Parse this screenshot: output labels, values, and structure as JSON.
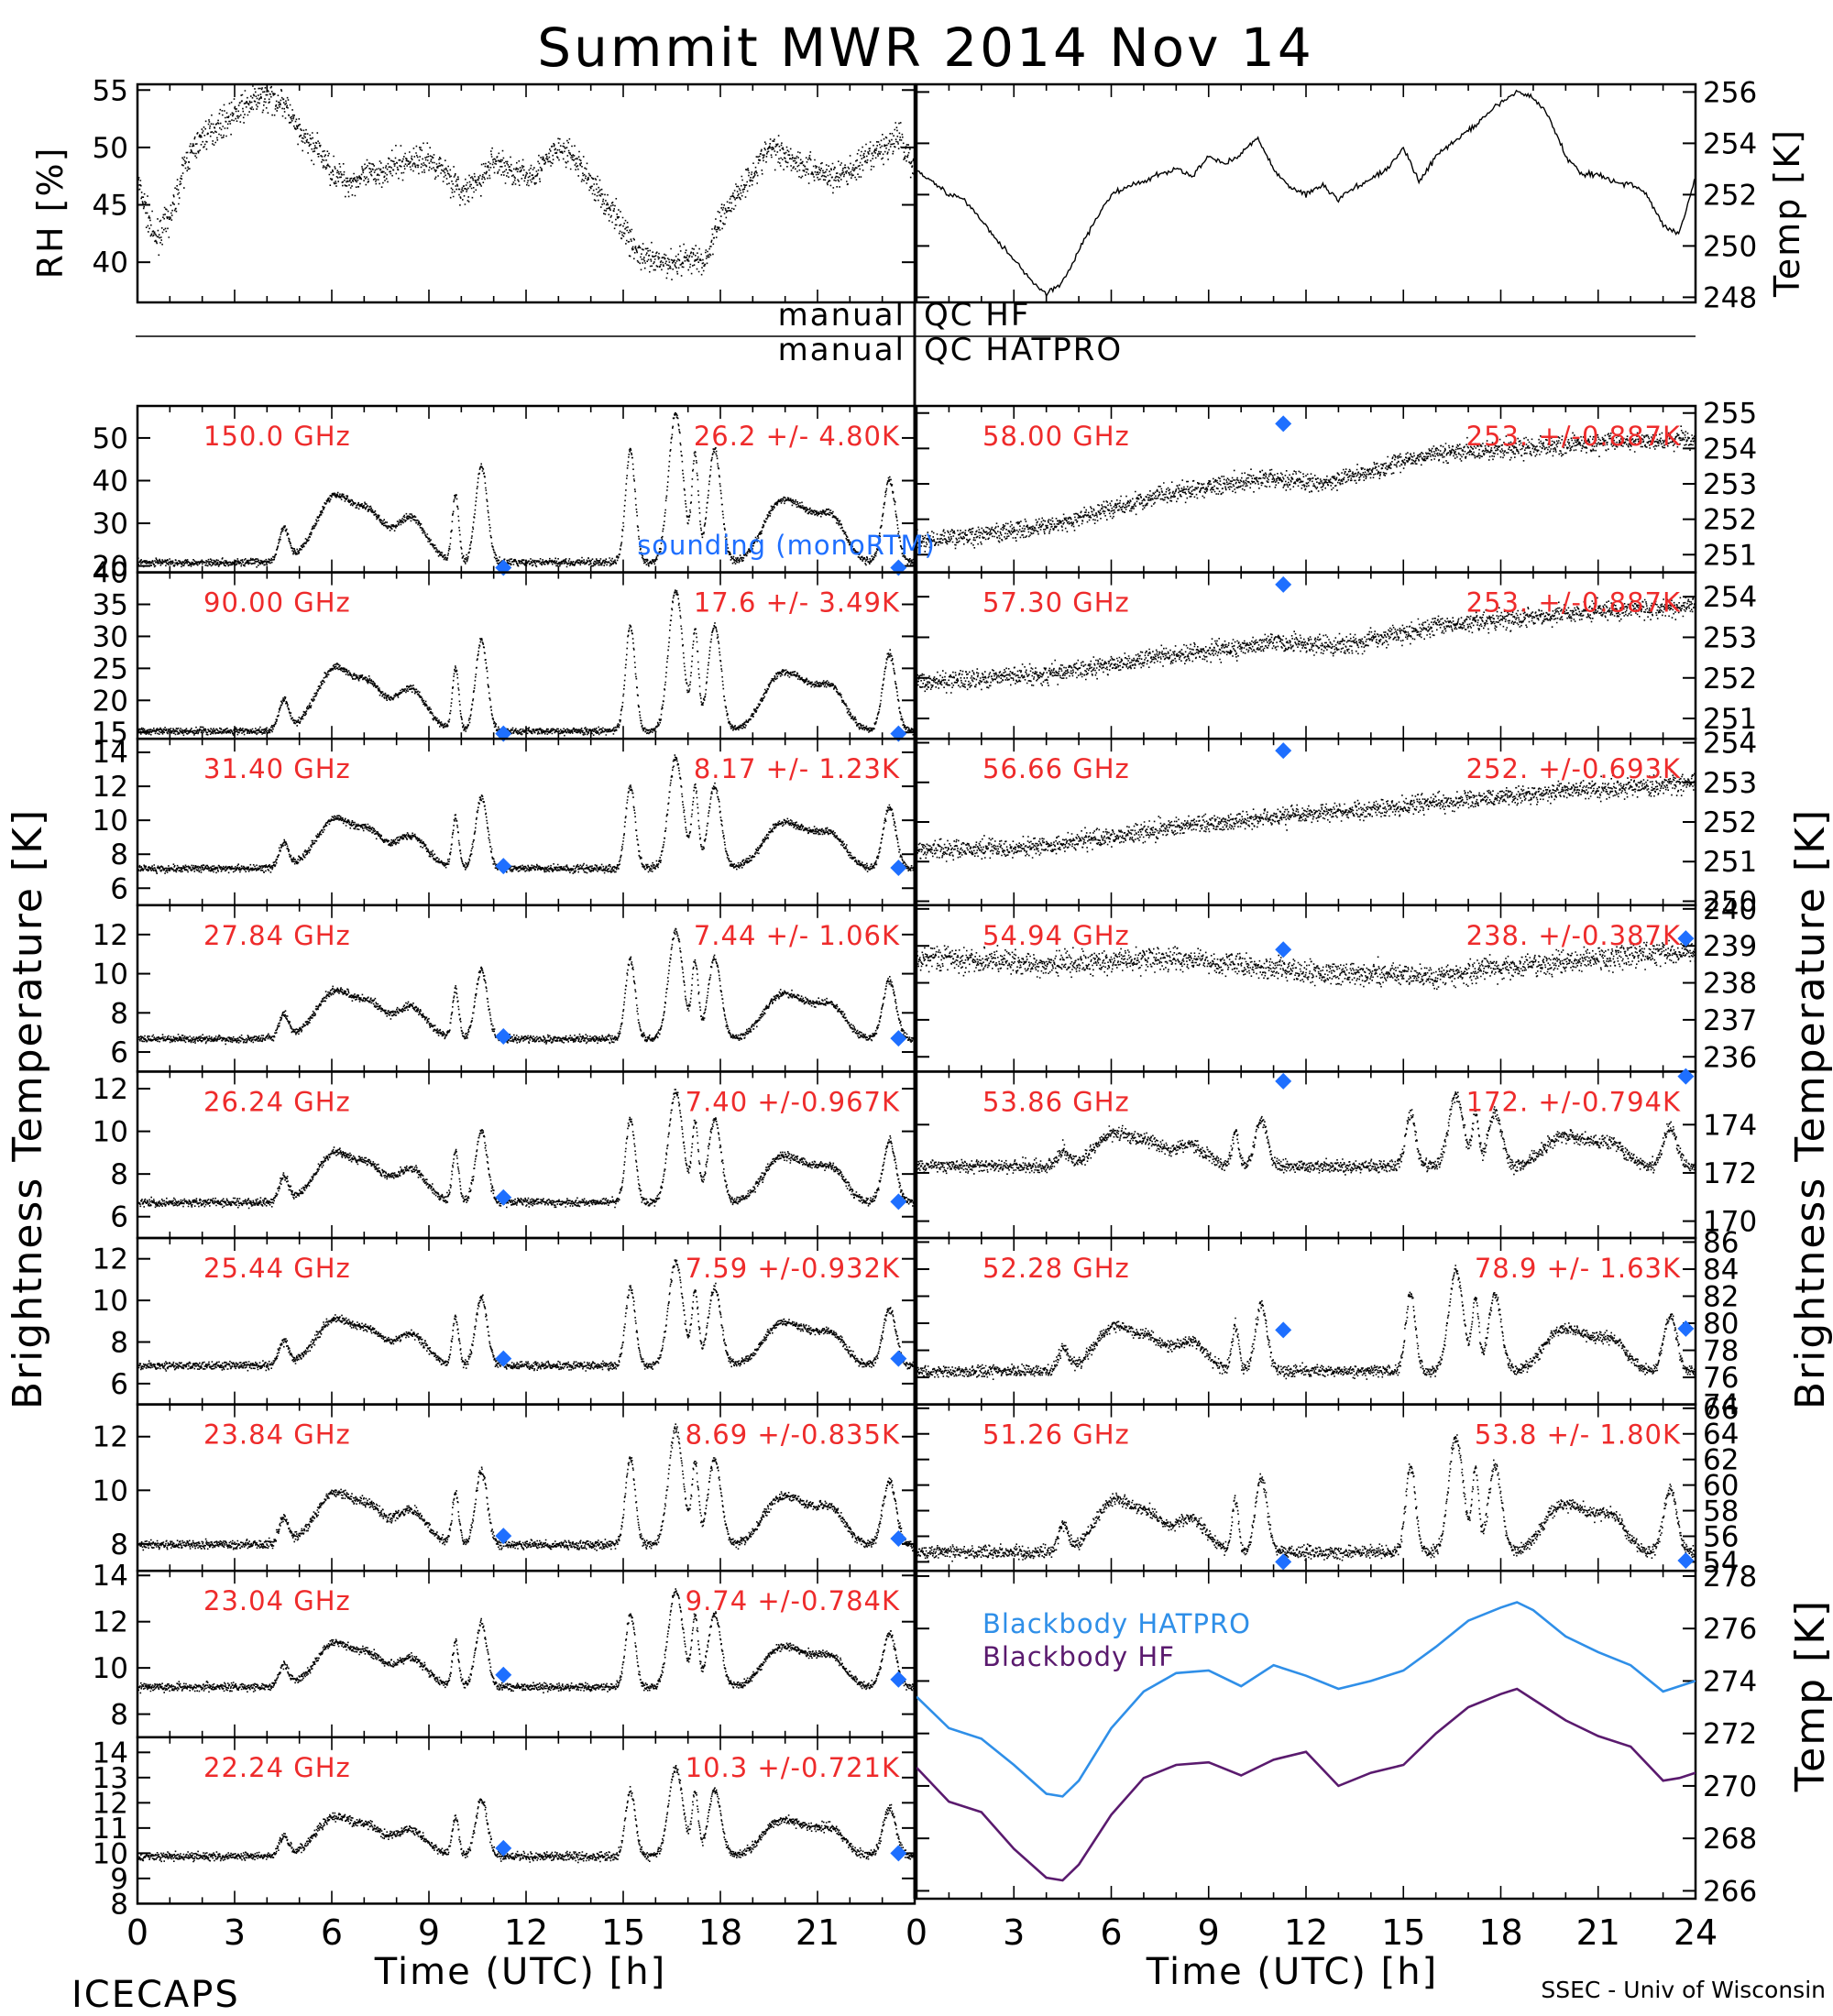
{
  "title": "Summit MWR 2014 Nov 14",
  "qc_labels": {
    "hf_left": "manual",
    "hf_right": "QC HF",
    "hatpro_left": "manual",
    "hatpro_right": "QC HATPRO"
  },
  "footer": {
    "left": "ICECAPS",
    "right": "SSEC - Univ of Wisconsin"
  },
  "axis_labels": {
    "rh": "RH [%]",
    "temp_top": "Temp [K]",
    "tb_left": "Brightness Temperature [K]",
    "tb_right": "Brightness Temperature [K]",
    "temp_bottom": "Temp [K]",
    "x_left": "Time (UTC) [h]",
    "x_right": "Time (UTC) [h]"
  },
  "x_ticks_left": [
    "0",
    "3",
    "6",
    "9",
    "12",
    "15",
    "18",
    "21"
  ],
  "x_ticks_right": [
    "0",
    "3",
    "6",
    "9",
    "12",
    "15",
    "18",
    "21",
    "24"
  ],
  "legend": [
    {
      "label": "sounding (monoRTM)",
      "color": "#1e6fff"
    },
    {
      "label": "Blackbody HATPRO",
      "color": "#2f8fe8"
    },
    {
      "label": "Blackbody HF",
      "color": "#5a1a6e"
    }
  ],
  "colors": {
    "label": "#ee2b2b",
    "diamond": "#1e6fff",
    "hatpro": "#2f8fe8",
    "hf": "#5a1a6e",
    "trace": "#000000"
  },
  "chart_data": [
    {
      "id": "rh",
      "type": "scatter",
      "ylabel": "RH [%]",
      "xlim": [
        0,
        24
      ],
      "ylim": [
        36.5,
        55.5
      ],
      "yticks": [
        40,
        45,
        50,
        55
      ],
      "ytick_labels": [
        "40",
        "45",
        "50",
        "55"
      ],
      "x": [
        0,
        0.5,
        1,
        1.5,
        2,
        2.5,
        3,
        3.5,
        4,
        4.5,
        5,
        5.5,
        6,
        6.5,
        7,
        7.5,
        8,
        8.5,
        9,
        9.5,
        10,
        10.5,
        11,
        11.5,
        12,
        12.5,
        13,
        13.5,
        14,
        14.5,
        15,
        15.5,
        16,
        16.5,
        17,
        17.5,
        18,
        18.5,
        19,
        19.5,
        20,
        20.5,
        21,
        21.5,
        22,
        22.5,
        23,
        23.5,
        24
      ],
      "y": [
        47,
        42,
        44,
        49,
        51,
        52,
        53,
        54,
        54.5,
        54,
        51,
        50,
        48,
        47,
        47.5,
        48,
        48.5,
        49,
        49,
        48,
        46,
        47,
        49,
        48,
        47.5,
        48.5,
        50,
        49,
        47,
        45,
        43,
        40.5,
        40,
        40,
        40.5,
        40,
        44,
        46,
        48,
        50,
        49.5,
        48.5,
        48,
        47.5,
        48,
        49,
        50,
        51,
        48
      ],
      "noise": 1.2
    },
    {
      "id": "temp_top",
      "type": "line",
      "ylabel": "Temp [K]",
      "xlim": [
        0,
        24
      ],
      "ylim": [
        247.8,
        256.3
      ],
      "yticks": [
        248,
        250,
        252,
        254,
        256
      ],
      "ytick_labels": [
        "248",
        "250",
        "252",
        "254",
        "256"
      ],
      "x": [
        0,
        0.5,
        1,
        1.5,
        2,
        2.5,
        3,
        3.5,
        4,
        4.5,
        5,
        5.5,
        6,
        6.5,
        7,
        7.5,
        8,
        8.5,
        9,
        9.5,
        10,
        10.5,
        11,
        11.5,
        12,
        12.5,
        13,
        13.5,
        14,
        14.5,
        15,
        15.5,
        16,
        16.5,
        17,
        17.5,
        18,
        18.5,
        19,
        19.5,
        20,
        20.5,
        21,
        21.5,
        22,
        22.5,
        23,
        23.5,
        24
      ],
      "y": [
        253,
        252.5,
        252,
        251.8,
        251,
        250.2,
        249.5,
        248.7,
        248.1,
        248.6,
        249.8,
        251,
        252,
        252.3,
        252.5,
        252.8,
        253,
        252.7,
        253.5,
        253.2,
        253.6,
        254.2,
        253,
        252.3,
        252,
        252.4,
        251.8,
        252.3,
        252.6,
        253,
        253.8,
        252.5,
        253.5,
        254,
        254.5,
        255,
        255.6,
        256,
        255.8,
        255,
        253.5,
        252.8,
        252.8,
        252.5,
        252.4,
        252,
        250.8,
        250.5,
        252.7
      ],
      "noise": 0.1
    },
    {
      "id": "ch150",
      "type": "scatter",
      "label": "150.0 GHz",
      "stat": "26.2 +/- 4.80K",
      "xlim": [
        0,
        24
      ],
      "ylim": [
        18.5,
        57.5
      ],
      "yticks": [
        20,
        30,
        40,
        50
      ],
      "ytick_labels": [
        "20",
        "30",
        "40",
        "50"
      ],
      "baseline": 21,
      "peak": 35,
      "diamonds": [
        [
          11.3,
          19.6
        ],
        [
          23.5,
          19.6
        ]
      ],
      "noise": 0.8
    },
    {
      "id": "ch90",
      "type": "scatter",
      "label": "90.00 GHz",
      "stat": "17.6 +/- 3.49K",
      "xlim": [
        0,
        24
      ],
      "ylim": [
        14,
        40
      ],
      "yticks": [
        15,
        20,
        25,
        30,
        35,
        40
      ],
      "ytick_labels": [
        "15",
        "20",
        "25",
        "30",
        "35",
        "40"
      ],
      "baseline": 15.3,
      "peak": 22,
      "diamonds": [
        [
          11.3,
          14.8
        ],
        [
          23.5,
          14.8
        ]
      ],
      "noise": 0.5
    },
    {
      "id": "ch3140",
      "type": "scatter",
      "label": "31.40 GHz",
      "stat": "8.17 +/- 1.23K",
      "xlim": [
        0,
        24
      ],
      "ylim": [
        5,
        14.8
      ],
      "yticks": [
        6,
        8,
        10,
        12,
        14
      ],
      "ytick_labels": [
        "6",
        "8",
        "10",
        "12",
        "14"
      ],
      "baseline": 7.2,
      "peak": 6.5,
      "diamonds": [
        [
          11.3,
          7.3
        ],
        [
          23.5,
          7.2
        ]
      ],
      "noise": 0.2
    },
    {
      "id": "ch2784",
      "type": "scatter",
      "label": "27.84 GHz",
      "stat": "7.44 +/- 1.06K",
      "xlim": [
        0,
        24
      ],
      "ylim": [
        5,
        13.5
      ],
      "yticks": [
        6,
        8,
        10,
        12
      ],
      "ytick_labels": [
        "6",
        "8",
        "10",
        "12"
      ],
      "baseline": 6.7,
      "peak": 5.5,
      "diamonds": [
        [
          11.3,
          6.8
        ],
        [
          23.5,
          6.7
        ]
      ],
      "noise": 0.18
    },
    {
      "id": "ch2624",
      "type": "scatter",
      "label": "26.24 GHz",
      "stat": "7.40 +/-0.967K",
      "xlim": [
        0,
        24
      ],
      "ylim": [
        5,
        12.8
      ],
      "yticks": [
        6,
        8,
        10,
        12
      ],
      "ytick_labels": [
        "6",
        "8",
        "10",
        "12"
      ],
      "baseline": 6.7,
      "peak": 5.2,
      "diamonds": [
        [
          11.3,
          6.9
        ],
        [
          23.5,
          6.7
        ]
      ],
      "noise": 0.18
    },
    {
      "id": "ch2544",
      "type": "scatter",
      "label": "25.44 GHz",
      "stat": "7.59 +/-0.932K",
      "xlim": [
        0,
        24
      ],
      "ylim": [
        5,
        13
      ],
      "yticks": [
        6,
        8,
        10,
        12
      ],
      "ytick_labels": [
        "6",
        "8",
        "10",
        "12"
      ],
      "baseline": 6.9,
      "peak": 5.0,
      "diamonds": [
        [
          11.3,
          7.2
        ],
        [
          23.5,
          7.2
        ]
      ],
      "noise": 0.18
    },
    {
      "id": "ch2384",
      "type": "scatter",
      "label": "23.84 GHz",
      "stat": "8.69 +/-0.835K",
      "xlim": [
        0,
        24
      ],
      "ylim": [
        7,
        13.2
      ],
      "yticks": [
        8,
        10,
        12
      ],
      "ytick_labels": [
        "8",
        "10",
        "12"
      ],
      "baseline": 8,
      "peak": 4.3,
      "diamonds": [
        [
          11.3,
          8.3
        ],
        [
          23.5,
          8.2
        ]
      ],
      "noise": 0.16
    },
    {
      "id": "ch2304",
      "type": "scatter",
      "label": "23.04 GHz",
      "stat": "9.74 +/-0.784K",
      "xlim": [
        0,
        24
      ],
      "ylim": [
        7,
        14.2
      ],
      "yticks": [
        8,
        10,
        12,
        14
      ],
      "ytick_labels": [
        "8",
        "10",
        "12",
        "14"
      ],
      "baseline": 9.2,
      "peak": 4.2,
      "diamonds": [
        [
          11.3,
          9.7
        ],
        [
          23.5,
          9.5
        ]
      ],
      "noise": 0.16
    },
    {
      "id": "ch2224",
      "type": "scatter",
      "label": "22.24 GHz",
      "stat": "10.3 +/-0.721K",
      "xlim": [
        0,
        24
      ],
      "ylim": [
        8,
        14.6
      ],
      "yticks": [
        8,
        9,
        10,
        11,
        12,
        13,
        14
      ],
      "ytick_labels": [
        "8",
        "9",
        "10",
        "11",
        "12",
        "13",
        "14"
      ],
      "baseline": 9.9,
      "peak": 3.5,
      "diamonds": [
        [
          11.3,
          10.2
        ],
        [
          23.5,
          10.0
        ]
      ],
      "noise": 0.16
    },
    {
      "id": "ch5800",
      "type": "scatter",
      "label": "58.00 GHz",
      "stat": "253. +/-0.887K",
      "xlim": [
        0,
        24
      ],
      "ylim": [
        250.5,
        255.2
      ],
      "yticks": [
        251,
        252,
        253,
        254,
        255
      ],
      "ytick_labels": [
        "251",
        "252",
        "253",
        "254",
        "255"
      ],
      "trend": [
        [
          0,
          251.4
        ],
        [
          4,
          251.8
        ],
        [
          8,
          252.8
        ],
        [
          11,
          253.2
        ],
        [
          12.5,
          253.0
        ],
        [
          16,
          253.9
        ],
        [
          20,
          254.1
        ],
        [
          24,
          254.3
        ]
      ],
      "diamonds": [
        [
          11.3,
          254.7
        ]
      ],
      "noise": 0.25
    },
    {
      "id": "ch5730",
      "type": "scatter",
      "label": "57.30 GHz",
      "stat": "253. +/-0.887K",
      "xlim": [
        0,
        24
      ],
      "ylim": [
        250.5,
        254.6
      ],
      "yticks": [
        251,
        252,
        253,
        254
      ],
      "ytick_labels": [
        "251",
        "252",
        "253",
        "254"
      ],
      "trend": [
        [
          0,
          251.9
        ],
        [
          4,
          252.1
        ],
        [
          8,
          252.6
        ],
        [
          11,
          252.9
        ],
        [
          13,
          252.8
        ],
        [
          16,
          253.3
        ],
        [
          20,
          253.6
        ],
        [
          24,
          253.8
        ]
      ],
      "diamonds": [
        [
          11.3,
          254.3
        ]
      ],
      "noise": 0.22
    },
    {
      "id": "ch5666",
      "type": "scatter",
      "label": "56.66 GHz",
      "stat": "252. +/-0.693K",
      "xlim": [
        0,
        24
      ],
      "ylim": [
        249.9,
        254.1
      ],
      "yticks": [
        250,
        251,
        252,
        253,
        254
      ],
      "ytick_labels": [
        "250",
        "251",
        "252",
        "253",
        "254"
      ],
      "trend": [
        [
          0,
          251.3
        ],
        [
          4,
          251.4
        ],
        [
          8,
          251.9
        ],
        [
          12,
          252.2
        ],
        [
          16,
          252.5
        ],
        [
          20,
          252.8
        ],
        [
          24,
          253.0
        ]
      ],
      "diamonds": [
        [
          11.3,
          253.8
        ]
      ],
      "noise": 0.22
    },
    {
      "id": "ch5494",
      "type": "scatter",
      "label": "54.94 GHz",
      "stat": "238. +/-0.387K",
      "xlim": [
        0,
        24
      ],
      "ylim": [
        235.6,
        240.1
      ],
      "yticks": [
        236,
        237,
        238,
        239,
        240
      ],
      "ytick_labels": [
        "236",
        "237",
        "238",
        "239",
        "240"
      ],
      "trend": [
        [
          0,
          238.7
        ],
        [
          4,
          238.5
        ],
        [
          8,
          238.7
        ],
        [
          12,
          238.3
        ],
        [
          16,
          238.2
        ],
        [
          20,
          238.6
        ],
        [
          24,
          238.9
        ]
      ],
      "diamonds": [
        [
          11.3,
          238.9
        ],
        [
          23.7,
          239.2
        ]
      ],
      "noise": 0.3
    },
    {
      "id": "ch5386",
      "type": "scatter",
      "label": "53.86 GHz",
      "stat": "172. +/-0.794K",
      "xlim": [
        0,
        24
      ],
      "ylim": [
        169.3,
        176.2
      ],
      "yticks": [
        170,
        172,
        174
      ],
      "ytick_labels": [
        "170",
        "172",
        "174"
      ],
      "baseline": 172.3,
      "peak": 3.0,
      "diamonds": [
        [
          11.3,
          175.8
        ],
        [
          23.7,
          176.0
        ]
      ],
      "noise": 0.25
    },
    {
      "id": "ch5228",
      "type": "scatter",
      "label": "52.28 GHz",
      "stat": "78.9 +/- 1.63K",
      "xlim": [
        0,
        24
      ],
      "ylim": [
        74,
        86.3
      ],
      "yticks": [
        74,
        76,
        78,
        80,
        82,
        84,
        86
      ],
      "ytick_labels": [
        "74",
        "76",
        "78",
        "80",
        "82",
        "84",
        "86"
      ],
      "baseline": 76.5,
      "peak": 7.5,
      "diamonds": [
        [
          11.3,
          79.5
        ],
        [
          23.7,
          79.6
        ]
      ],
      "noise": 0.4
    },
    {
      "id": "ch5126",
      "type": "scatter",
      "label": "51.26 GHz",
      "stat": "53.8 +/- 1.80K",
      "xlim": [
        0,
        24
      ],
      "ylim": [
        53.3,
        66.3
      ],
      "yticks": [
        54,
        56,
        58,
        60,
        62,
        64,
        66
      ],
      "ytick_labels": [
        "54",
        "56",
        "58",
        "60",
        "62",
        "64",
        "66"
      ],
      "baseline": 54.8,
      "peak": 9.0,
      "diamonds": [
        [
          11.3,
          54.0
        ],
        [
          23.7,
          54.1
        ]
      ],
      "noise": 0.45
    },
    {
      "id": "blackbody",
      "type": "line",
      "ylabel": "Temp [K]",
      "xlim": [
        0,
        24
      ],
      "ylim": [
        265.7,
        278.2
      ],
      "yticks": [
        266,
        268,
        270,
        272,
        274,
        276,
        278
      ],
      "ytick_labels": [
        "266",
        "268",
        "270",
        "272",
        "274",
        "276",
        "278"
      ],
      "x": [
        0,
        1,
        2,
        3,
        4,
        4.5,
        5,
        6,
        7,
        8,
        9,
        10,
        11,
        12,
        13,
        14,
        15,
        16,
        17,
        18,
        18.5,
        19,
        20,
        21,
        22,
        23,
        23.5,
        24
      ],
      "series": [
        {
          "name": "Blackbody HATPRO",
          "color": "#2f8fe8",
          "values": [
            273.4,
            272.2,
            271.8,
            270.8,
            269.7,
            269.6,
            270.2,
            272.2,
            273.6,
            274.3,
            274.4,
            273.8,
            274.6,
            274.2,
            273.7,
            274.0,
            274.4,
            275.3,
            276.3,
            276.8,
            277.0,
            276.7,
            275.7,
            275.1,
            274.6,
            273.6,
            273.8,
            274.0
          ]
        },
        {
          "name": "Blackbody HF",
          "color": "#5a1a6e",
          "values": [
            270.7,
            269.4,
            269.0,
            267.6,
            266.5,
            266.4,
            267.0,
            268.9,
            270.3,
            270.8,
            270.9,
            270.4,
            271.0,
            271.3,
            270.0,
            270.5,
            270.8,
            272.0,
            273.0,
            273.5,
            273.7,
            273.3,
            272.5,
            271.9,
            271.5,
            270.2,
            270.3,
            270.5
          ]
        }
      ]
    }
  ]
}
